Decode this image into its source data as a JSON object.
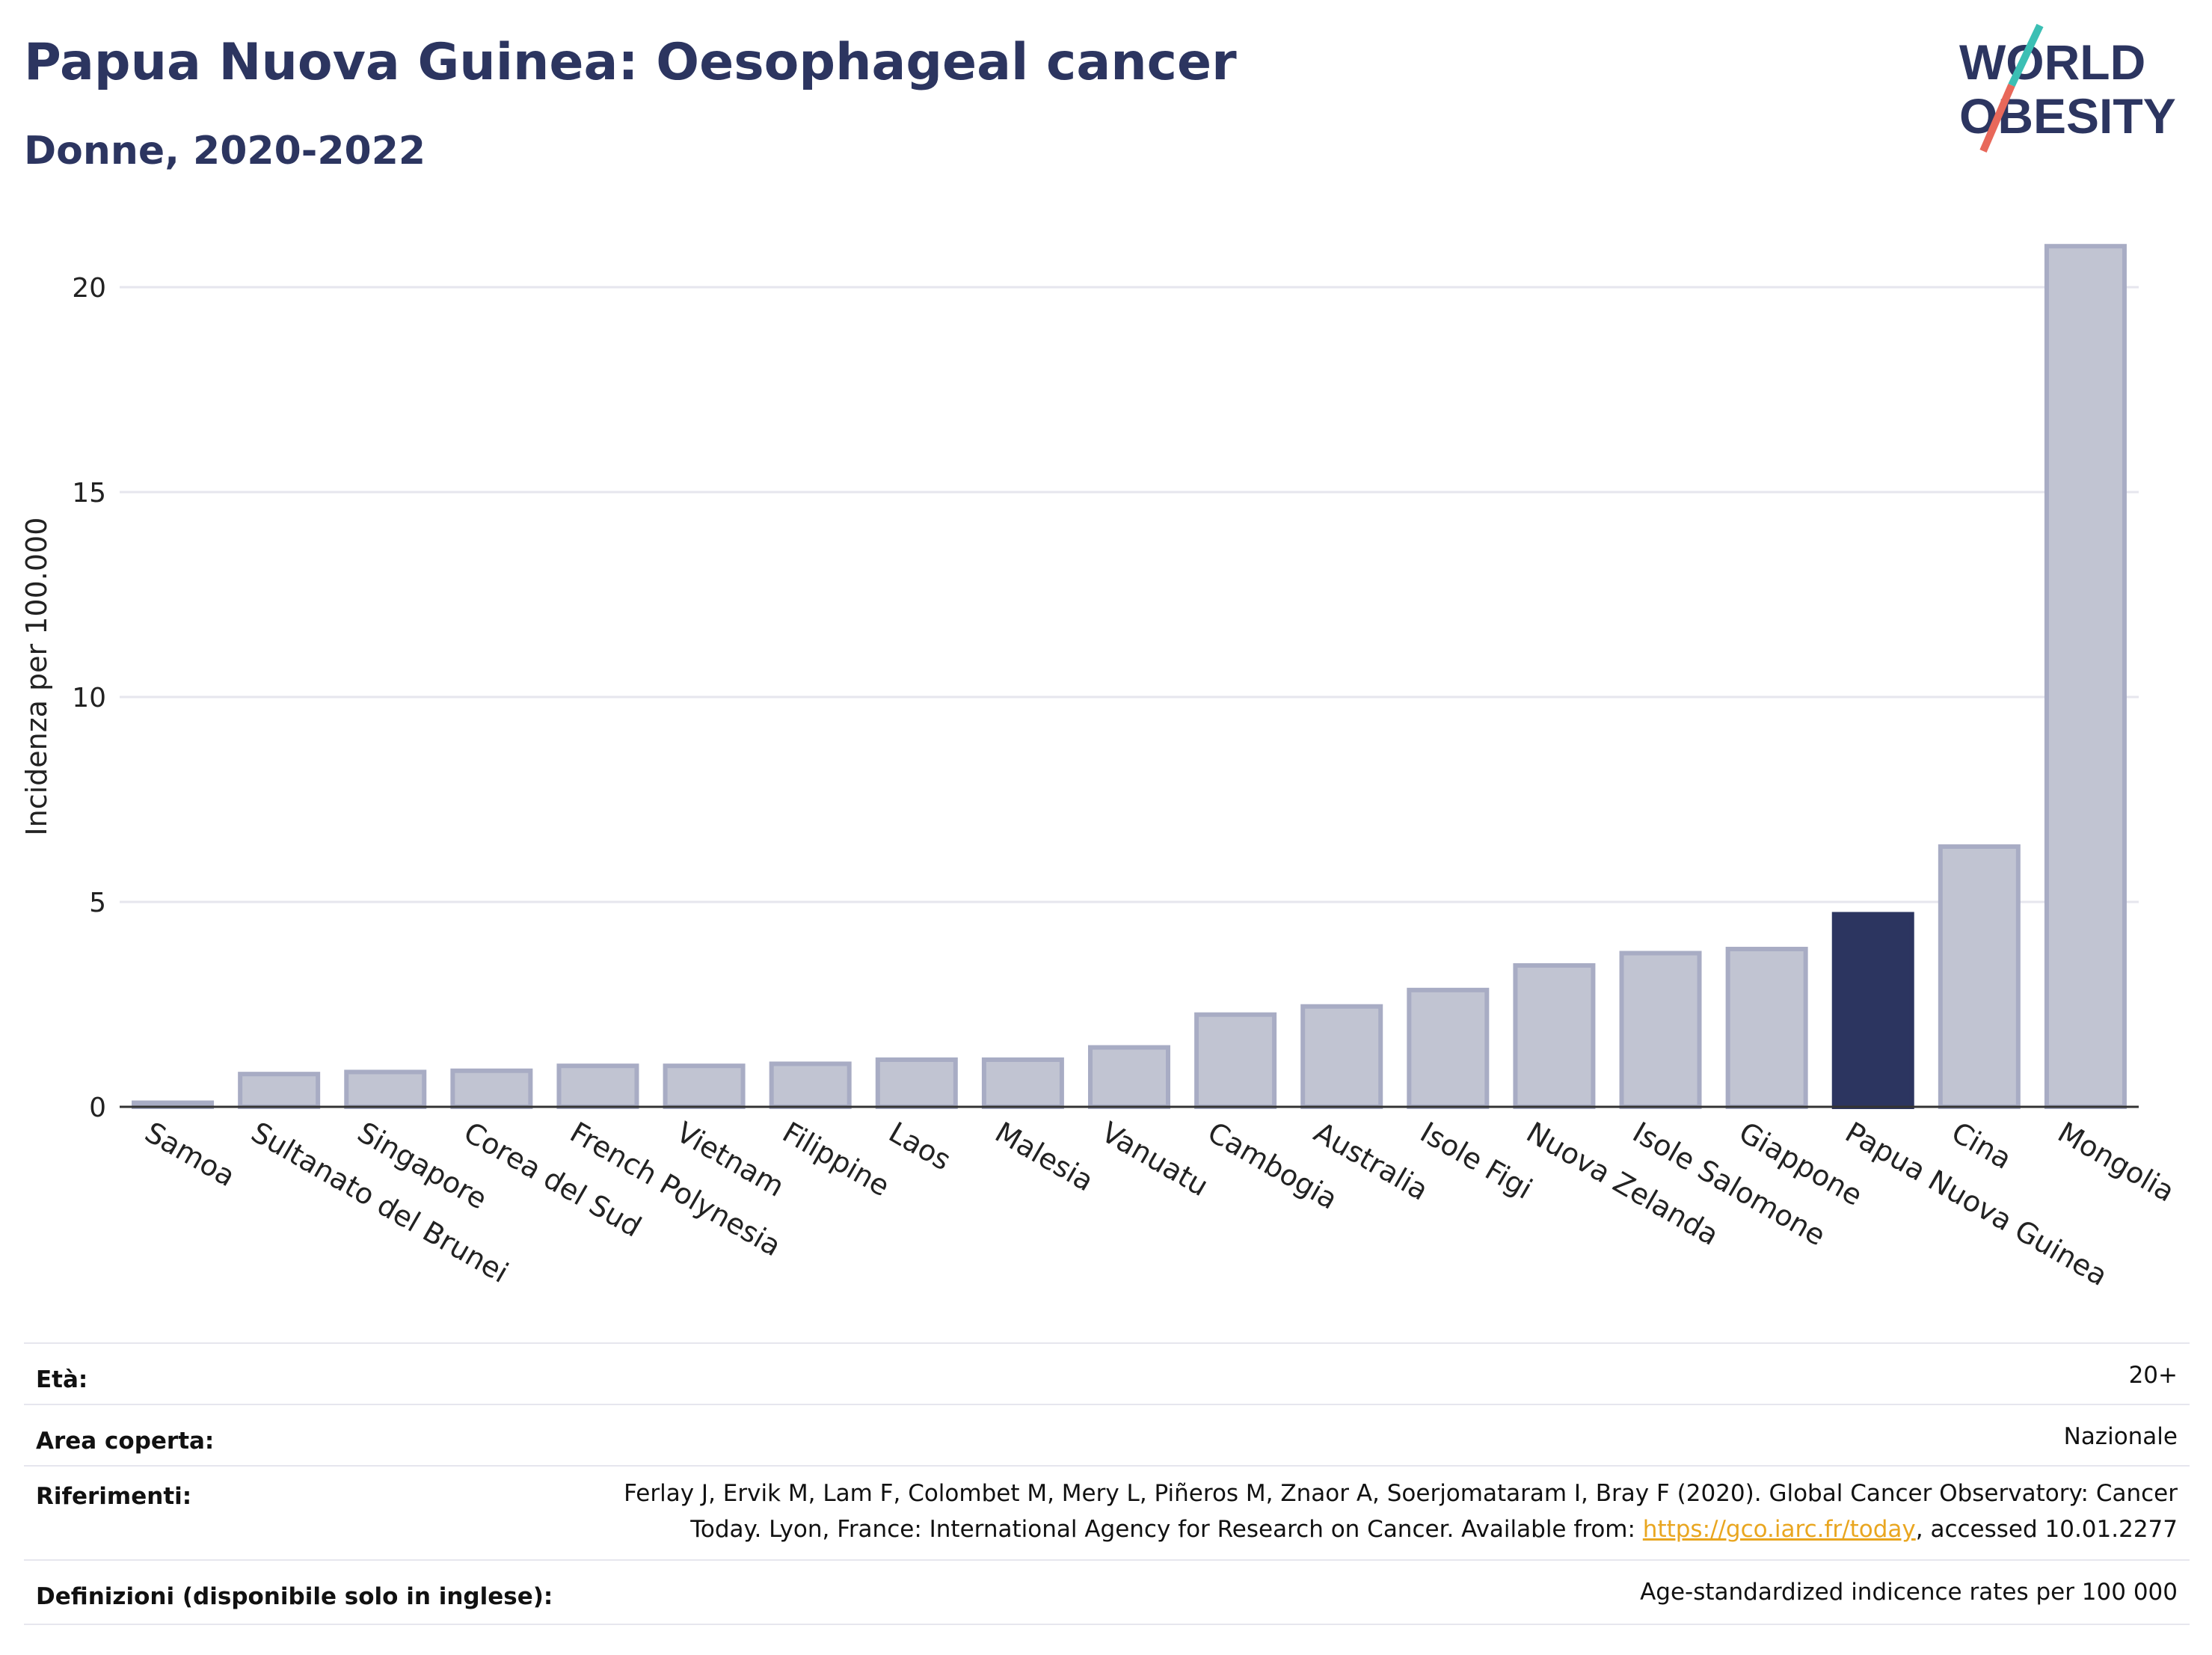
{
  "header": {
    "title": "Papua Nuova Guinea: Oesophageal cancer",
    "subtitle": "Donne, 2020-2022"
  },
  "logo": {
    "line1": "WORLD",
    "line2": "OBESITY",
    "accent_teal": "#3bbfb4",
    "accent_coral": "#e8685a"
  },
  "chart_data": {
    "type": "bar",
    "ylabel": "Incidenza per 100.000",
    "xlabel": "",
    "ylim": [
      0,
      22
    ],
    "yticks": [
      0,
      5,
      10,
      15,
      20
    ],
    "grid": true,
    "categories": [
      "Samoa",
      "Sultanato del Brunei",
      "Singapore",
      "Corea del Sud",
      "French Polynesia",
      "Vietnam",
      "Filippine",
      "Laos",
      "Malesia",
      "Vanuatu",
      "Cambogia",
      "Australia",
      "Isole Figi",
      "Nuova Zelanda",
      "Isole Salomone",
      "Giappone",
      "Papua Nuova Guinea",
      "Cina",
      "Mongolia"
    ],
    "values": [
      0.1,
      0.8,
      0.85,
      0.88,
      1.0,
      1.0,
      1.05,
      1.15,
      1.15,
      1.45,
      2.25,
      2.45,
      2.85,
      3.45,
      3.75,
      3.85,
      4.7,
      6.35,
      21.0
    ],
    "highlight": "Papua Nuova Guinea",
    "colors": {
      "bar": "#c1c4d2",
      "bar_border": "#a8acc4",
      "highlight": "#2c3560"
    }
  },
  "info": {
    "age_label": "Età:",
    "age_value": "20+",
    "area_label": "Area coperta:",
    "area_value": "Nazionale",
    "refs_label": "Riferimenti:",
    "refs_line1": "Ferlay J, Ervik M, Lam F, Colombet M, Mery L, Piñeros M, Znaor A, Soerjomataram I, Bray F (2020). Global Cancer Observatory: Cancer",
    "refs_line2_pre": "Today. Lyon, France: International Agency for Research on Cancer. Available from: ",
    "refs_link": "https://gco.iarc.fr/today",
    "refs_line2_post": ", accessed 10.01.2277",
    "defs_label": "Definizioni (disponibile solo in inglese):",
    "defs_value": "Age-standardized indicence rates per 100 000"
  }
}
